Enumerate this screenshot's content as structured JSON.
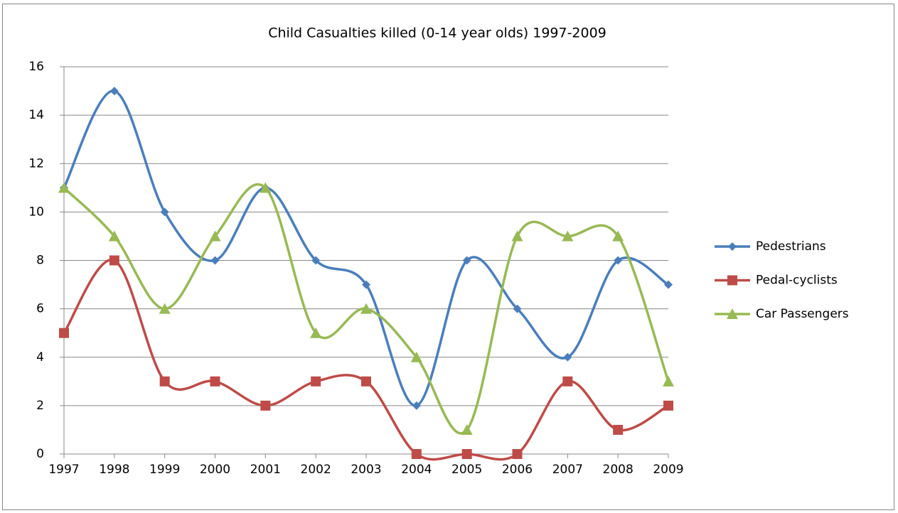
{
  "chart_data": {
    "type": "line",
    "title": "Child Casualties killed (0-14 year olds) 1997-2009",
    "x": [
      1997,
      1998,
      1999,
      2000,
      2001,
      2002,
      2003,
      2004,
      2005,
      2006,
      2007,
      2008,
      2009
    ],
    "xlim": [
      1997,
      2009
    ],
    "xticks": [
      1997,
      1998,
      1999,
      2000,
      2001,
      2002,
      2003,
      2004,
      2005,
      2006,
      2007,
      2008,
      2009
    ],
    "ylim": [
      0,
      16
    ],
    "yticks": [
      0,
      2,
      4,
      6,
      8,
      10,
      12,
      14,
      16
    ],
    "grid": true,
    "smooth": true,
    "legend": "right",
    "series": [
      {
        "name": "Pedestrians",
        "color": "#4a7ebb",
        "marker": "diamond",
        "values": [
          11,
          15,
          10,
          8,
          11,
          8,
          7,
          2,
          8,
          6,
          4,
          8,
          7
        ]
      },
      {
        "name": "Pedal-cyclists",
        "color": "#be4b48",
        "marker": "square",
        "values": [
          5,
          8,
          3,
          3,
          2,
          3,
          3,
          0,
          0,
          0,
          3,
          1,
          2
        ]
      },
      {
        "name": "Car Passengers",
        "color": "#98b954",
        "marker": "triangle",
        "values": [
          11,
          9,
          6,
          9,
          11,
          5,
          6,
          4,
          1,
          9,
          9,
          9,
          3
        ]
      }
    ]
  }
}
